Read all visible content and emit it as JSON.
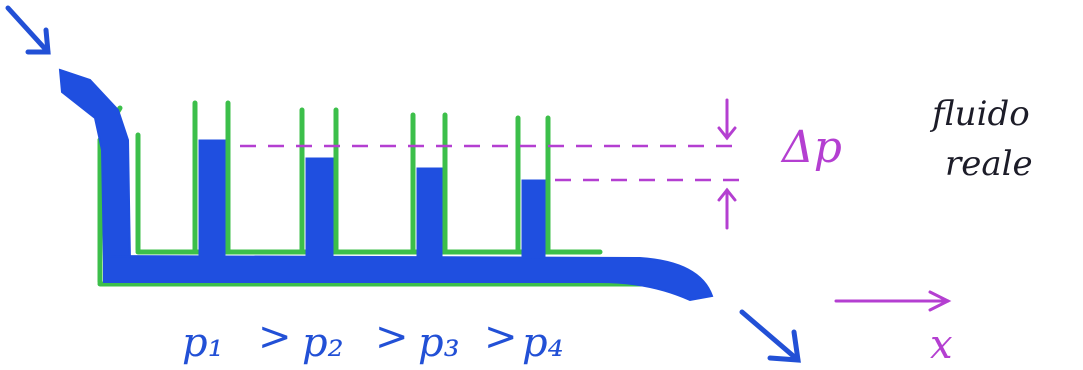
{
  "annotations": {
    "delta_p": "Δp",
    "title_line1": "fluido",
    "title_line2": "reale",
    "x_axis": "x"
  },
  "pressures": [
    "p₁",
    "p₂",
    "p₃",
    "p₄"
  ],
  "relation": ">",
  "colors": {
    "water": "#1f4fe0",
    "pipe": "#3cbf4a",
    "annotation": "#b43fd1",
    "text": "#1c1c28"
  },
  "icons": [
    "flow-in-arrow",
    "flow-out-arrow",
    "x-direction-arrow"
  ]
}
